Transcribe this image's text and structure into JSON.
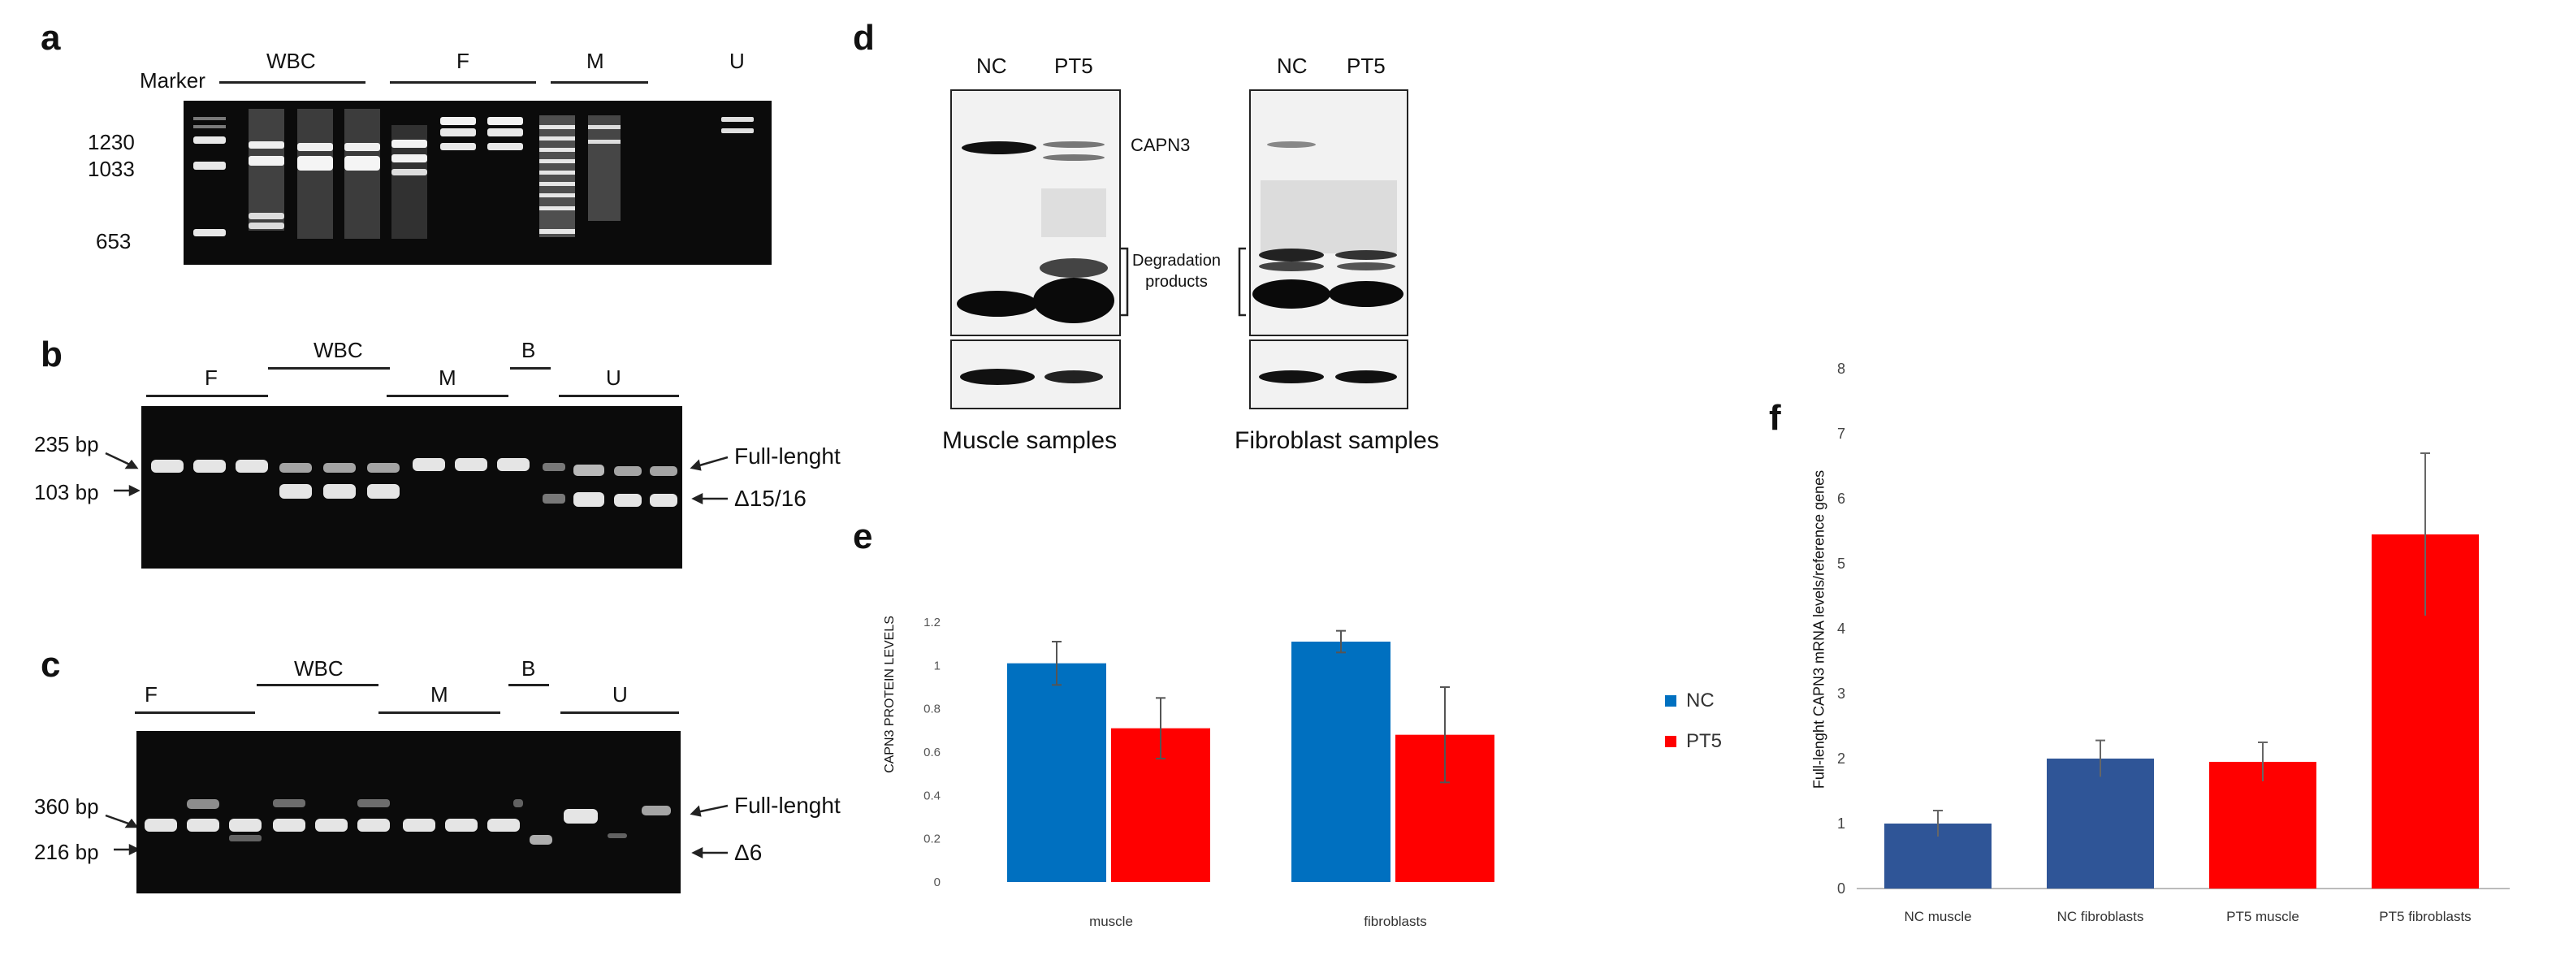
{
  "panels": {
    "a": {
      "letter": "a",
      "lane_groups": [
        "Marker",
        "WBC",
        "F",
        "M",
        "U"
      ],
      "size_markers": [
        "1230",
        "1033",
        "653"
      ]
    },
    "b": {
      "letter": "b",
      "lane_groups": [
        "F",
        "WBC",
        "M",
        "B",
        "U"
      ],
      "size_markers": [
        "235 bp",
        "103 bp"
      ],
      "product_labels": [
        "Full-lenght",
        "Δ15/16"
      ]
    },
    "c": {
      "letter": "c",
      "lane_groups": [
        "F",
        "WBC",
        "M",
        "B",
        "U"
      ],
      "size_markers": [
        "360 bp",
        "216 bp"
      ],
      "product_labels": [
        "Full-lenght",
        "Δ6"
      ]
    },
    "d": {
      "letter": "d",
      "lane_labels": [
        "NC",
        "PT5"
      ],
      "band_labels": {
        "capn3": "CAPN3",
        "degradation": "Degradation\nproducts"
      },
      "captions": [
        "Muscle samples",
        "Fibroblast samples"
      ]
    }
  },
  "chart_data": [
    {
      "panel": "e",
      "type": "bar",
      "categories": [
        "muscle",
        "fibroblasts"
      ],
      "series": [
        {
          "name": "NC",
          "color": "#0070c0",
          "values": [
            1.01,
            1.11
          ],
          "errors": [
            0.1,
            0.05
          ]
        },
        {
          "name": "PT5",
          "color": "#ff0000",
          "values": [
            0.71,
            0.68
          ],
          "errors": [
            0.14,
            0.22
          ]
        }
      ],
      "ylabel": "CAPN3 PROTEIN LEVELS",
      "xlabel": "",
      "ylim": [
        0,
        1.2
      ],
      "yticks": [
        "0",
        "0.2",
        "0.4",
        "0.6",
        "0.8",
        "1",
        "1.2"
      ],
      "legend": "right",
      "grid": false
    },
    {
      "panel": "f",
      "type": "bar",
      "categories": [
        "NC muscle",
        "NC fibroblasts",
        "PT5 muscle",
        "PT5 fibroblasts"
      ],
      "values": [
        1.0,
        2.0,
        1.95,
        5.45
      ],
      "errors": [
        0.2,
        0.28,
        0.3,
        1.25
      ],
      "colors": [
        "#2f5597",
        "#2f5597",
        "#ff0000",
        "#ff0000"
      ],
      "ylabel": "Full-lenght CAPN3 mRNA levels/reference genes",
      "xlabel": "",
      "ylim": [
        0,
        8
      ],
      "yticks": [
        "0",
        "1",
        "2",
        "3",
        "4",
        "5",
        "6",
        "7",
        "8"
      ],
      "grid": false
    }
  ]
}
